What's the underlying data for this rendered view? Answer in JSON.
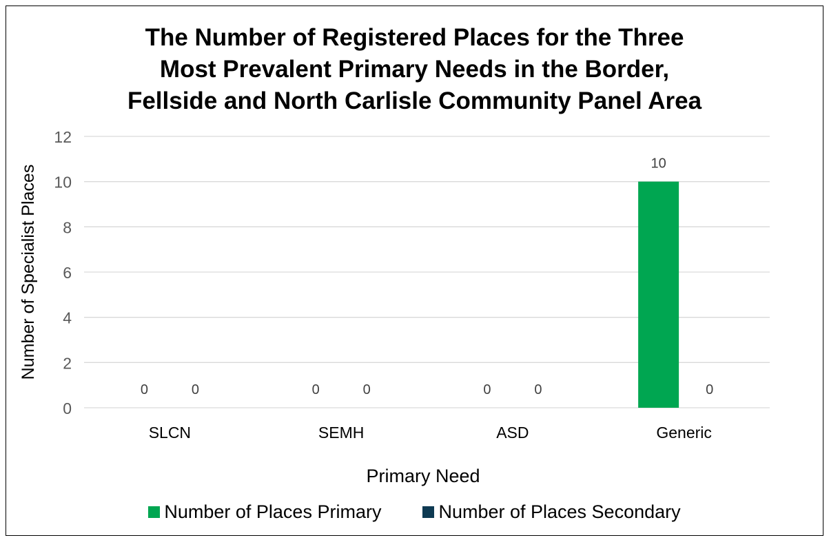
{
  "chart_data": {
    "type": "bar",
    "title_lines": [
      "The Number of Registered Places for the Three",
      "Most Prevalent Primary Needs in the Border,",
      "Fellside and North Carlisle Community Panel Area"
    ],
    "xlabel": "Primary Need",
    "ylabel": "Number of Specialist Places",
    "categories": [
      "SLCN",
      "SEMH",
      "ASD",
      "Generic"
    ],
    "series": [
      {
        "name": "Number of Places Primary",
        "values": [
          0,
          0,
          0,
          10
        ],
        "color": "#00a651"
      },
      {
        "name": "Number of Places Secondary",
        "values": [
          0,
          0,
          0,
          0
        ],
        "color": "#0e3a52"
      }
    ],
    "ylim": [
      0,
      12
    ],
    "yticks": [
      0,
      2,
      4,
      6,
      8,
      10,
      12
    ],
    "grid": true,
    "data_labels": true,
    "legend_position": "bottom"
  }
}
